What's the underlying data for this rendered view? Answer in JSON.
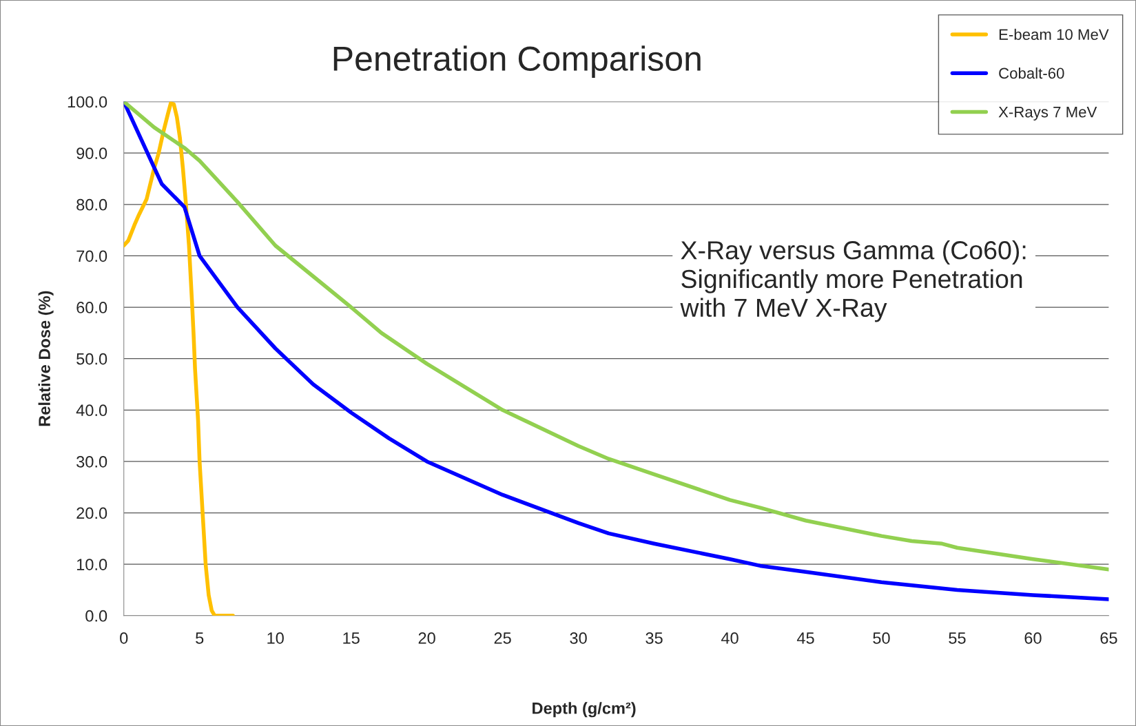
{
  "chart_data": {
    "type": "line",
    "title": "Penetration Comparison",
    "xlabel": "Depth (g/cm²)",
    "ylabel": "Relative Dose (%)",
    "xlim": [
      0,
      65
    ],
    "xticks": [
      0,
      5,
      10,
      15,
      20,
      25,
      30,
      35,
      40,
      45,
      50,
      55,
      60,
      65
    ],
    "ylim": [
      0,
      100
    ],
    "yticks": [
      {
        "value": 0,
        "label": "0.0"
      },
      {
        "value": 10,
        "label": "10.0"
      },
      {
        "value": 20,
        "label": "20.0"
      },
      {
        "value": 30,
        "label": "30.0"
      },
      {
        "value": 40,
        "label": "40.0"
      },
      {
        "value": 50,
        "label": "50.0"
      },
      {
        "value": 60,
        "label": "60.0"
      },
      {
        "value": 70,
        "label": "70.0"
      },
      {
        "value": 80,
        "label": "80.0"
      },
      {
        "value": 90,
        "label": "90.0"
      },
      {
        "value": 100,
        "label": "100.0"
      }
    ],
    "grid": "y",
    "legend": "top right",
    "marker": "none",
    "line_style": "solid",
    "series": [
      {
        "name": "E-beam 10 MeV",
        "color": "#ffc000",
        "x": [
          0,
          0.3,
          0.7,
          1,
          1.5,
          2,
          2.3,
          2.6,
          2.9,
          3.1,
          3.3,
          3.5,
          3.7,
          3.9,
          4.1,
          4.3,
          4.5,
          4.6,
          4.7,
          4.9,
          5.0,
          5.2,
          5.4,
          5.6,
          5.8,
          6,
          7.2
        ],
        "values": [
          72,
          73,
          76,
          78,
          81,
          87,
          90,
          94,
          97.5,
          99.7,
          99.5,
          97,
          93,
          87,
          80,
          72,
          61,
          55,
          48,
          38,
          30,
          20,
          10,
          4,
          1,
          0,
          0
        ]
      },
      {
        "name": "Cobalt-60",
        "color": "#0000ff",
        "x": [
          0,
          2.5,
          4,
          5,
          7.5,
          10,
          12.5,
          15,
          17.5,
          20,
          25,
          30,
          32,
          35,
          40,
          42,
          45,
          50,
          55,
          60,
          65
        ],
        "values": [
          100,
          84,
          79.5,
          70,
          60,
          52,
          45,
          39.5,
          34.5,
          30,
          23.5,
          18,
          16,
          14,
          11,
          9.7,
          8.5,
          6.5,
          5,
          4,
          3.2
        ]
      },
      {
        "name": "X-Rays 7 MeV",
        "color": "#92d050",
        "x": [
          0,
          2,
          4,
          5,
          7.5,
          10,
          12.5,
          15,
          17,
          20,
          25,
          30,
          32,
          35,
          40,
          42,
          45,
          50,
          52,
          54,
          55,
          60,
          65
        ],
        "values": [
          100,
          95,
          91,
          88.5,
          80.5,
          72,
          66,
          60,
          55,
          49,
          40,
          33,
          30.5,
          27.5,
          22.5,
          21,
          18.5,
          15.5,
          14.5,
          14,
          13.2,
          11,
          9
        ]
      }
    ],
    "annotations": [
      "X-Ray versus Gamma (Co60):\nSignificantly more Penetration\nwith 7 MeV X-Ray"
    ]
  }
}
